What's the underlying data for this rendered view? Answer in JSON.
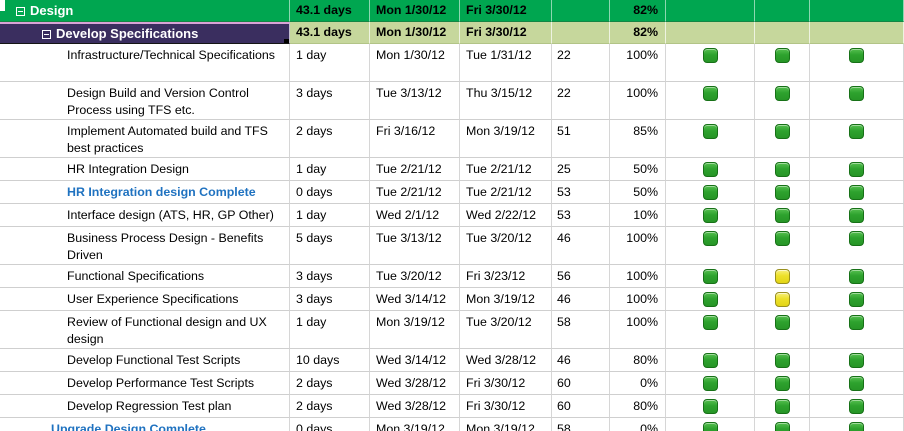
{
  "colors": {
    "header_green": "#00A650",
    "header_purple": "#3A2E5F",
    "band_light_green": "#C6D79C",
    "milestone_blue": "#1F72C0",
    "indicator_green": "#2EA22E",
    "indicator_yellow": "#ECE02A"
  },
  "group_design": {
    "label": "Design",
    "duration": "43.1 days",
    "start": "Mon 1/30/12",
    "finish": "Fri 3/30/12",
    "pred": "",
    "pct": "82%"
  },
  "group_develop": {
    "label": "Develop Specifications",
    "duration": "43.1 days",
    "start": "Mon 1/30/12",
    "finish": "Fri 3/30/12",
    "pred": "",
    "pct": "82%"
  },
  "tasks": [
    {
      "name": "Infrastructure/Technical Specifications",
      "duration": "1 day",
      "start": "Mon 1/30/12",
      "finish": "Tue 1/31/12",
      "pred": "22",
      "pct": "100%",
      "indicators": [
        "green",
        "green",
        "green"
      ],
      "style": "task",
      "level": 3,
      "lines": 2
    },
    {
      "name": "Design Build and Version Control Process using TFS etc.",
      "duration": "3 days",
      "start": "Tue 3/13/12",
      "finish": "Thu 3/15/12",
      "pred": "22",
      "pct": "100%",
      "indicators": [
        "green",
        "green",
        "green"
      ],
      "style": "task",
      "level": 3,
      "lines": 2
    },
    {
      "name": "Implement Automated build and TFS best practices",
      "duration": "2 days",
      "start": "Fri 3/16/12",
      "finish": "Mon 3/19/12",
      "pred": "51",
      "pct": "85%",
      "indicators": [
        "green",
        "green",
        "green"
      ],
      "style": "task",
      "level": 3,
      "lines": 2
    },
    {
      "name": "HR Integration Design",
      "duration": "1 day",
      "start": "Tue 2/21/12",
      "finish": "Tue 2/21/12",
      "pred": "25",
      "pct": "50%",
      "indicators": [
        "green",
        "green",
        "green"
      ],
      "style": "task",
      "level": 3,
      "lines": 1
    },
    {
      "name": "HR Integration design Complete",
      "duration": "0 days",
      "start": "Tue 2/21/12",
      "finish": "Tue 2/21/12",
      "pred": "53",
      "pct": "50%",
      "indicators": [
        "green",
        "green",
        "green"
      ],
      "style": "milestone",
      "level": 3,
      "lines": 1
    },
    {
      "name": "Interface design (ATS, HR, GP Other)",
      "duration": "1 day",
      "start": "Wed 2/1/12",
      "finish": "Wed 2/22/12",
      "pred": "53",
      "pct": "10%",
      "indicators": [
        "green",
        "green",
        "green"
      ],
      "style": "task",
      "level": 3,
      "lines": 1
    },
    {
      "name": "Business Process Design - Benefits Driven",
      "duration": "5 days",
      "start": "Tue 3/13/12",
      "finish": "Tue 3/20/12",
      "pred": "46",
      "pct": "100%",
      "indicators": [
        "green",
        "green",
        "green"
      ],
      "style": "task",
      "level": 3,
      "lines": 2
    },
    {
      "name": "Functional Specifications",
      "duration": "3 days",
      "start": "Tue 3/20/12",
      "finish": "Fri 3/23/12",
      "pred": "56",
      "pct": "100%",
      "indicators": [
        "green",
        "yellow",
        "green"
      ],
      "style": "task",
      "level": 3,
      "lines": 1
    },
    {
      "name": "User Experience Specifications",
      "duration": "3 days",
      "start": "Wed 3/14/12",
      "finish": "Mon 3/19/12",
      "pred": "46",
      "pct": "100%",
      "indicators": [
        "green",
        "yellow",
        "green"
      ],
      "style": "task",
      "level": 3,
      "lines": 1
    },
    {
      "name": "Review of Functional design and UX design",
      "duration": "1 day",
      "start": "Mon 3/19/12",
      "finish": "Tue 3/20/12",
      "pred": "58",
      "pct": "100%",
      "indicators": [
        "green",
        "green",
        "green"
      ],
      "style": "task",
      "level": 3,
      "lines": 2
    },
    {
      "name": "Develop Functional Test Scripts",
      "duration": "10 days",
      "start": "Wed 3/14/12",
      "finish": "Wed 3/28/12",
      "pred": "46",
      "pct": "80%",
      "indicators": [
        "green",
        "green",
        "green"
      ],
      "style": "task",
      "level": 3,
      "lines": 1
    },
    {
      "name": "Develop Performance Test Scripts",
      "duration": "2 days",
      "start": "Wed 3/28/12",
      "finish": "Fri 3/30/12",
      "pred": "60",
      "pct": "0%",
      "indicators": [
        "green",
        "green",
        "green"
      ],
      "style": "task",
      "level": 3,
      "lines": 1
    },
    {
      "name": "Develop Regression Test plan",
      "duration": "2 days",
      "start": "Wed 3/28/12",
      "finish": "Fri 3/30/12",
      "pred": "60",
      "pct": "80%",
      "indicators": [
        "green",
        "green",
        "green"
      ],
      "style": "task",
      "level": 3,
      "lines": 1
    },
    {
      "name": "Upgrade Design Complete",
      "duration": "0 days",
      "start": "Mon 3/19/12",
      "finish": "Mon 3/19/12",
      "pred": "58",
      "pct": "0%",
      "indicators": [
        "green",
        "green",
        "green"
      ],
      "style": "milestone",
      "level": 2,
      "lines": 1
    }
  ]
}
